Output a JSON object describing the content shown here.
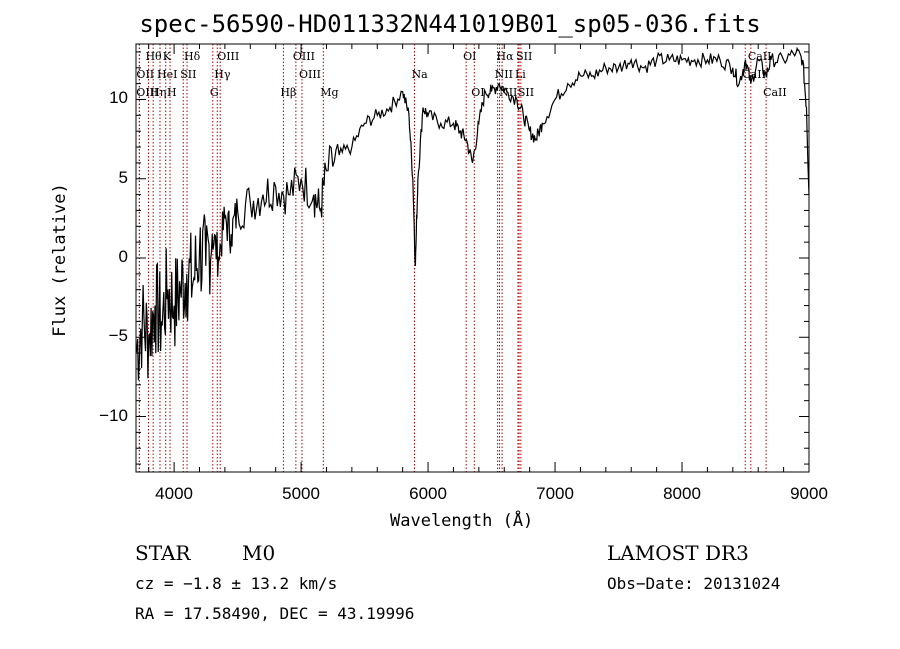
{
  "chart_data": {
    "type": "line",
    "title": "spec-56590-HD011332N441019B01_sp05-036.fits",
    "xlabel": "Wavelength (Å)",
    "ylabel": "Flux (relative)",
    "xlim": [
      3700,
      9000
    ],
    "ylim": [
      -13.5,
      13.5
    ],
    "xticks": [
      4000,
      5000,
      6000,
      7000,
      8000,
      9000
    ],
    "xtick_labels": [
      "4000",
      "5000",
      "6000",
      "7000",
      "8000",
      "9000"
    ],
    "yticks": [
      -10,
      -5,
      0,
      5,
      10
    ],
    "ytick_labels": [
      "−10",
      "−5",
      "0",
      "5",
      "10"
    ],
    "series": [
      {
        "name": "flux",
        "x": [
          3700,
          3750,
          3800,
          3850,
          3900,
          3950,
          4000,
          4050,
          4100,
          4150,
          4200,
          4250,
          4300,
          4350,
          4400,
          4450,
          4500,
          4600,
          4700,
          4800,
          4900,
          5000,
          5100,
          5150,
          5200,
          5300,
          5400,
          5500,
          5600,
          5700,
          5800,
          5850,
          5880,
          5900,
          5920,
          5960,
          6000,
          6100,
          6200,
          6250,
          6300,
          6350,
          6400,
          6450,
          6500,
          6560,
          6620,
          6700,
          6750,
          6800,
          6850,
          6900,
          7000,
          7100,
          7200,
          7300,
          7400,
          7500,
          7600,
          7700,
          7800,
          7900,
          8000,
          8100,
          8200,
          8300,
          8400,
          8450,
          8500,
          8542,
          8600,
          8662,
          8700,
          8800,
          8900,
          8950,
          8980,
          9000
        ],
        "y": [
          -6,
          -4,
          -5,
          -3,
          -4,
          -2,
          -3,
          -2,
          -1,
          -1.5,
          0.5,
          -0.5,
          1.5,
          0,
          2.5,
          1.5,
          3,
          3.5,
          4,
          4.5,
          4,
          5,
          4,
          3,
          5.5,
          6.5,
          7,
          8.5,
          9,
          9.5,
          10.5,
          9,
          5,
          -0.5,
          5,
          9.5,
          9,
          8.5,
          8.5,
          8,
          7.5,
          6,
          8.5,
          10.5,
          10.5,
          11,
          10.5,
          10,
          9,
          8,
          7.5,
          8.5,
          10,
          11,
          11.5,
          11.5,
          12,
          12,
          12.5,
          12,
          12.5,
          12.5,
          12.5,
          12.5,
          12.5,
          12.5,
          12,
          11,
          12.5,
          11,
          12.5,
          11.5,
          12.5,
          12.5,
          13,
          12.5,
          9.5,
          4
        ]
      }
    ],
    "spectral_lines": [
      {
        "name": "Hθ",
        "wavelength": 3798,
        "row": 0
      },
      {
        "name": "K",
        "wavelength": 3934,
        "row": 0
      },
      {
        "name": "Hδ",
        "wavelength": 4102,
        "row": 0
      },
      {
        "name": "OIII",
        "wavelength": 4363,
        "row": 0
      },
      {
        "name": "OIII",
        "wavelength": 4959,
        "row": 0
      },
      {
        "name": "Na",
        "wavelength": 5893,
        "row": 1
      },
      {
        "name": "OI",
        "wavelength": 6300,
        "row": 0
      },
      {
        "name": "Hα",
        "wavelength": 6563,
        "row": 0
      },
      {
        "name": "SII",
        "wavelength": 6717,
        "row": 0
      },
      {
        "name": "CaII",
        "wavelength": 8542,
        "row": 0
      },
      {
        "name": "OII",
        "wavelength": 3727,
        "row": 1
      },
      {
        "name": "HeI",
        "wavelength": 3889,
        "row": 1
      },
      {
        "name": "SII",
        "wavelength": 4072,
        "row": 1
      },
      {
        "name": "Hγ",
        "wavelength": 4340,
        "row": 1
      },
      {
        "name": "OIII",
        "wavelength": 5007,
        "row": 1
      },
      {
        "name": "NII",
        "wavelength": 6548,
        "row": 1
      },
      {
        "name": "Li",
        "wavelength": 6708,
        "row": 1
      },
      {
        "name": "CaII",
        "wavelength": 8498,
        "row": 1
      },
      {
        "name": "OIII",
        "wavelength": 3726,
        "row": 2
      },
      {
        "name": "Hη",
        "wavelength": 3835,
        "row": 2
      },
      {
        "name": "H",
        "wavelength": 3968,
        "row": 2
      },
      {
        "name": "G",
        "wavelength": 4305,
        "row": 2
      },
      {
        "name": "Hβ",
        "wavelength": 4861,
        "row": 2
      },
      {
        "name": "Mg",
        "wavelength": 5175,
        "row": 2
      },
      {
        "name": "OI",
        "wavelength": 6364,
        "row": 2
      },
      {
        "name": "NII",
        "wavelength": 6583,
        "row": 2
      },
      {
        "name": "SII",
        "wavelength": 6731,
        "row": 2
      },
      {
        "name": "CaII",
        "wavelength": 8662,
        "row": 2
      }
    ]
  },
  "info": {
    "class_label": "STAR",
    "subclass_label": "M0",
    "survey": "LAMOST DR3",
    "cz": "cz = −1.8 ± 13.2 km/s",
    "obs_date": "Obs−Date: 20131024",
    "coords": "RA =  17.58490, DEC =  43.19996"
  }
}
